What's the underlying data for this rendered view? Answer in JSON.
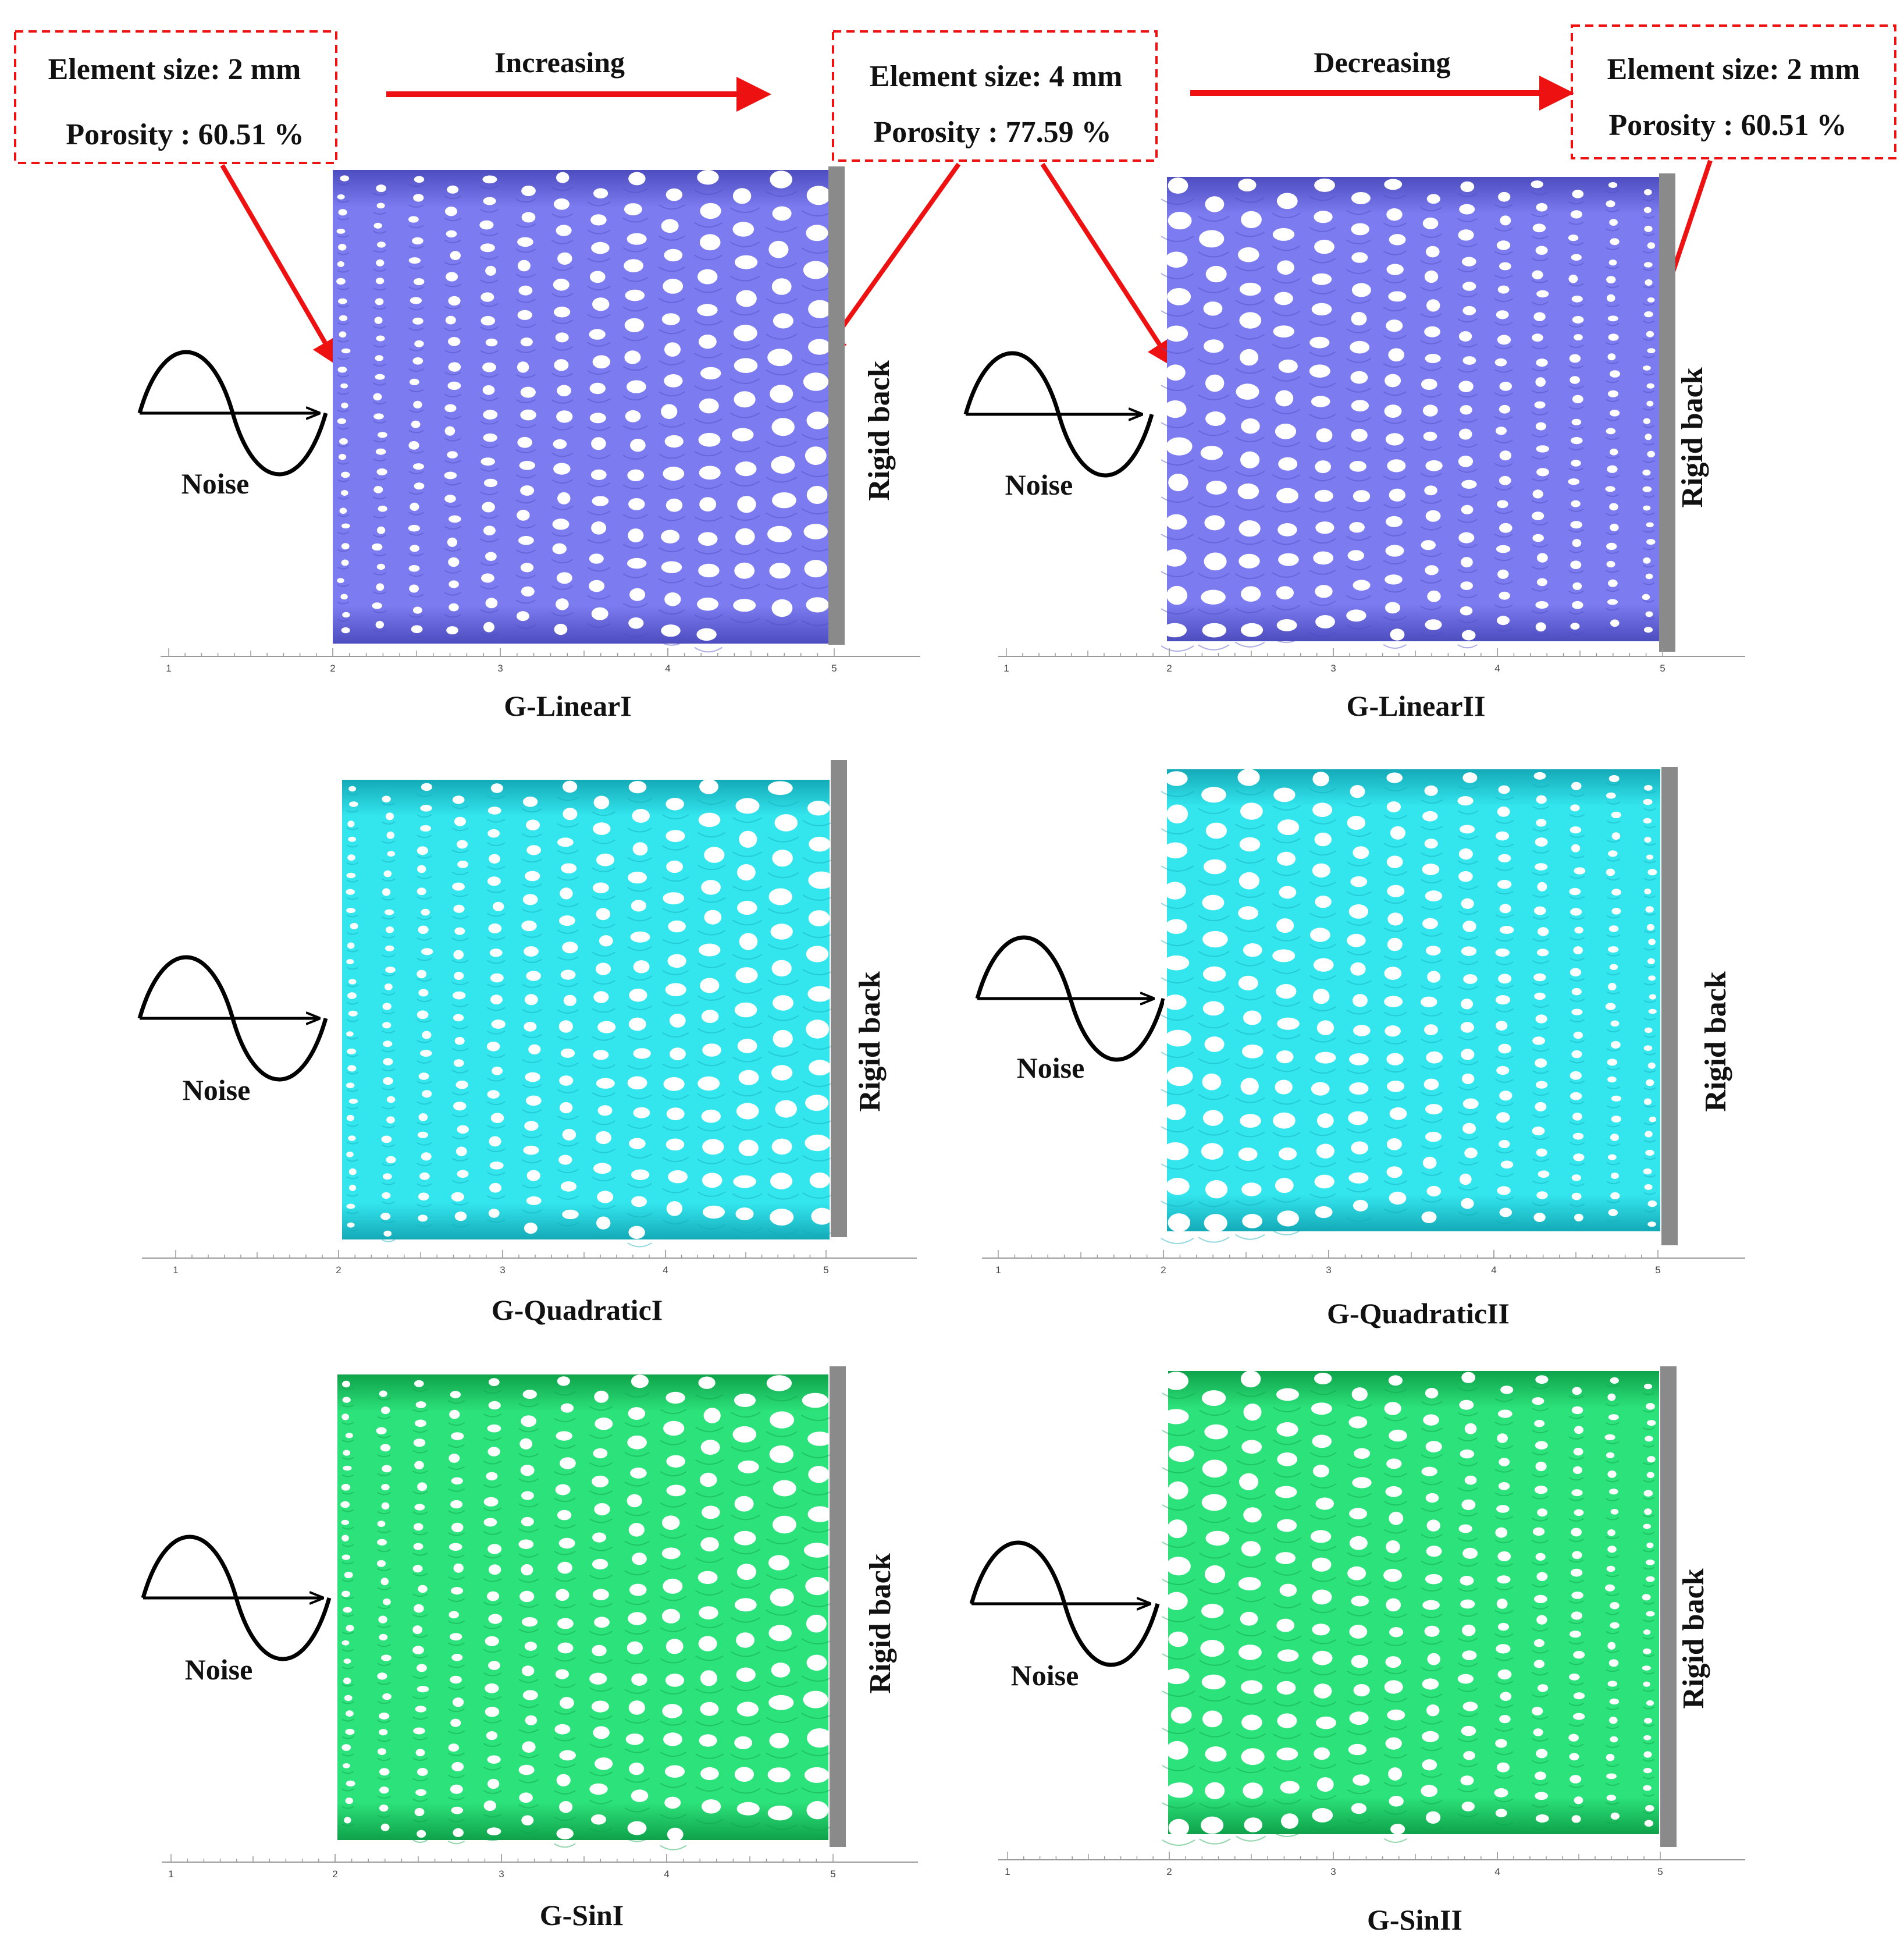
{
  "annotations": {
    "box_left": {
      "size": "Element size: 2 mm",
      "porosity": "Porosity : 60.51 %"
    },
    "box_middle": {
      "size": "Element size: 4 mm",
      "porosity": "Porosity : 77.59 %"
    },
    "box_right": {
      "size": "Element size: 2 mm",
      "porosity": "Porosity : 60.51 %"
    },
    "increasing": "Increasing",
    "decreasing": "Decreasing",
    "arrow_color": "#ee1111"
  },
  "common": {
    "noise_label": "Noise",
    "rigid_back_label": "Rigid back",
    "ruler_ticks": [
      "1",
      "2",
      "3",
      "4",
      "5"
    ]
  },
  "panels": [
    {
      "id": "linear1",
      "caption": "G-LinearI",
      "color": "#7c7cf0",
      "color_dark": "#4d4dc0",
      "gradient": "increasing"
    },
    {
      "id": "linear2",
      "caption": "G-LinearII",
      "color": "#7c7cf0",
      "color_dark": "#4d4dc0",
      "gradient": "decreasing"
    },
    {
      "id": "quadratic1",
      "caption": "G-QuadraticI",
      "color": "#33e6ee",
      "color_dark": "#14aab8",
      "gradient": "increasing"
    },
    {
      "id": "quadratic2",
      "caption": "G-QuadraticII",
      "color": "#33e6ee",
      "color_dark": "#14aab8",
      "gradient": "decreasing"
    },
    {
      "id": "sin1",
      "caption": "G-SinI",
      "color": "#2ce27a",
      "color_dark": "#0fa24a",
      "gradient": "increasing"
    },
    {
      "id": "sin2",
      "caption": "G-SinII",
      "color": "#2ce27a",
      "color_dark": "#0fa24a",
      "gradient": "decreasing"
    }
  ]
}
